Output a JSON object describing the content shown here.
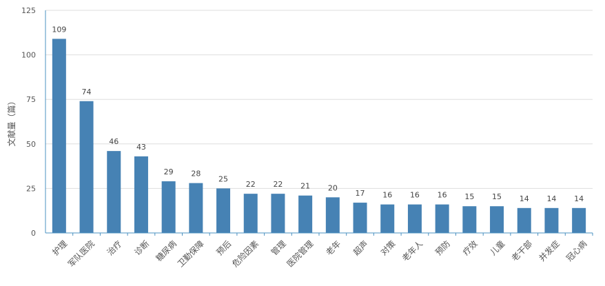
{
  "chart_data": {
    "type": "bar",
    "ylabel": "文献量（篇）",
    "ylim": [
      0,
      125
    ],
    "yticks": [
      0,
      25,
      50,
      75,
      100,
      125
    ],
    "grid": true,
    "categories": [
      "护理",
      "军队医院",
      "治疗",
      "诊断",
      "糖尿病",
      "卫勤保障",
      "预后",
      "危险因素",
      "管理",
      "医院管理",
      "老年",
      "超声",
      "对策",
      "老年人",
      "预防",
      "疗效",
      "儿童",
      "老干部",
      "并发症",
      "冠心病"
    ],
    "values": [
      109,
      74,
      46,
      43,
      29,
      28,
      25,
      22,
      22,
      21,
      20,
      17,
      16,
      16,
      16,
      15,
      15,
      14,
      14,
      14
    ],
    "colors": {
      "bar": "#4682b4",
      "grid": "#dddddd",
      "axis": "#4a90c0"
    }
  }
}
